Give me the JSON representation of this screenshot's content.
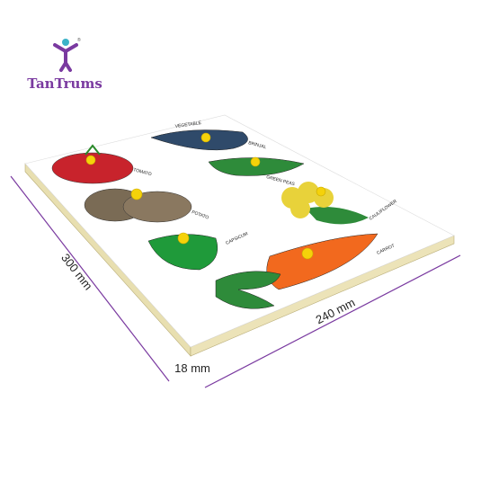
{
  "brand": {
    "name": "TanTrums",
    "mark": "®"
  },
  "board": {
    "heading": "VEGETABLE",
    "labels": {
      "tomato": "TOMATO",
      "brinjal": "BRINJAL",
      "peas": "GREEN PEAS",
      "potato": "POTATO",
      "cauliflower": "CAULIFLOWER",
      "capsicum": "CAPSICUM",
      "carrot": "CARROT"
    }
  },
  "dimensions": {
    "length": "300 mm",
    "width": "240 mm",
    "thickness": "18 mm"
  }
}
